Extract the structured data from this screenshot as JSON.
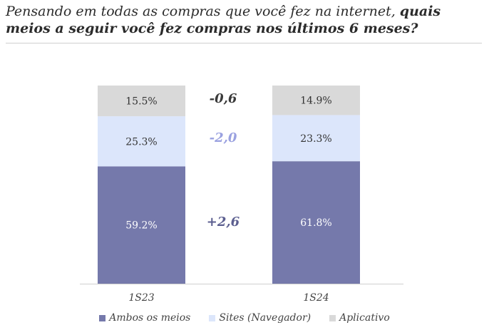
{
  "title": {
    "part1": "Pensando em todas as compras que você fez na internet, ",
    "part2": "quais meios a seguir você fez compras nos últimos 6 meses?"
  },
  "chart_data": {
    "type": "bar",
    "stacked": true,
    "categories": [
      "1S23",
      "1S24"
    ],
    "series": [
      {
        "name": "Ambos os meios",
        "values": [
          59.2,
          61.8
        ],
        "labels": [
          "59.2%",
          "61.8%"
        ],
        "color": "#7579ab",
        "label_color": "#ffffff"
      },
      {
        "name": "Sites (Navegador)",
        "values": [
          25.3,
          23.3
        ],
        "labels": [
          "25.3%",
          "23.3%"
        ],
        "color": "#dce6fb",
        "label_color": "#333333"
      },
      {
        "name": "Aplicativo",
        "values": [
          15.5,
          14.9
        ],
        "labels": [
          "15.5%",
          "14.9%"
        ],
        "color": "#d9d9d9",
        "label_color": "#333333"
      }
    ],
    "deltas": [
      {
        "text": "+2,6",
        "series": "Ambos os meios",
        "color": "#5c5f90"
      },
      {
        "text": "-2,0",
        "series": "Sites (Navegador)",
        "color": "#9aa1e0"
      },
      {
        "text": "-0,6",
        "series": "Aplicativo",
        "color": "#3a3a3a"
      }
    ],
    "ylim": [
      0,
      100
    ],
    "legend_position": "bottom",
    "grid": false
  }
}
